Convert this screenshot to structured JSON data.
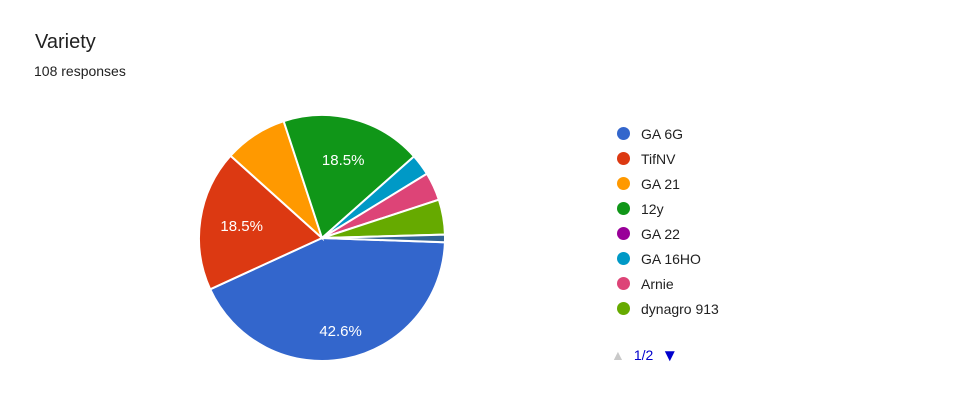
{
  "header": {
    "title": "Variety",
    "subtitle": "108 responses"
  },
  "chart_data": {
    "type": "pie",
    "title": "Variety",
    "total_responses": 108,
    "legend_position": "right",
    "start_angle_deg": 92,
    "slices": [
      {
        "label": "GA 6G",
        "percent": 42.6,
        "color": "#3366cc",
        "display_label": "42.6%"
      },
      {
        "label": "TifNV",
        "percent": 18.5,
        "color": "#dc3912",
        "display_label": "18.5%"
      },
      {
        "label": "GA 21",
        "percent": 8.3,
        "color": "#ff9900",
        "display_label": ""
      },
      {
        "label": "12y",
        "percent": 18.5,
        "color": "#109618",
        "display_label": "18.5%"
      },
      {
        "label": "GA 22",
        "percent": 0,
        "color": "#990099",
        "display_label": ""
      },
      {
        "label": "GA 16HO",
        "percent": 2.8,
        "color": "#0099c6",
        "display_label": ""
      },
      {
        "label": "Arnie",
        "percent": 3.7,
        "color": "#dd4477",
        "display_label": ""
      },
      {
        "label": "dynagro 913",
        "percent": 4.6,
        "color": "#66aa00",
        "display_label": ""
      },
      {
        "label": "",
        "percent": 1.0,
        "color": "#316395",
        "display_label": ""
      }
    ]
  },
  "legend": {
    "visible_count": 8,
    "pagination": {
      "page_label": "1/2",
      "prev_icon": "▲",
      "next_icon": "▼"
    }
  }
}
